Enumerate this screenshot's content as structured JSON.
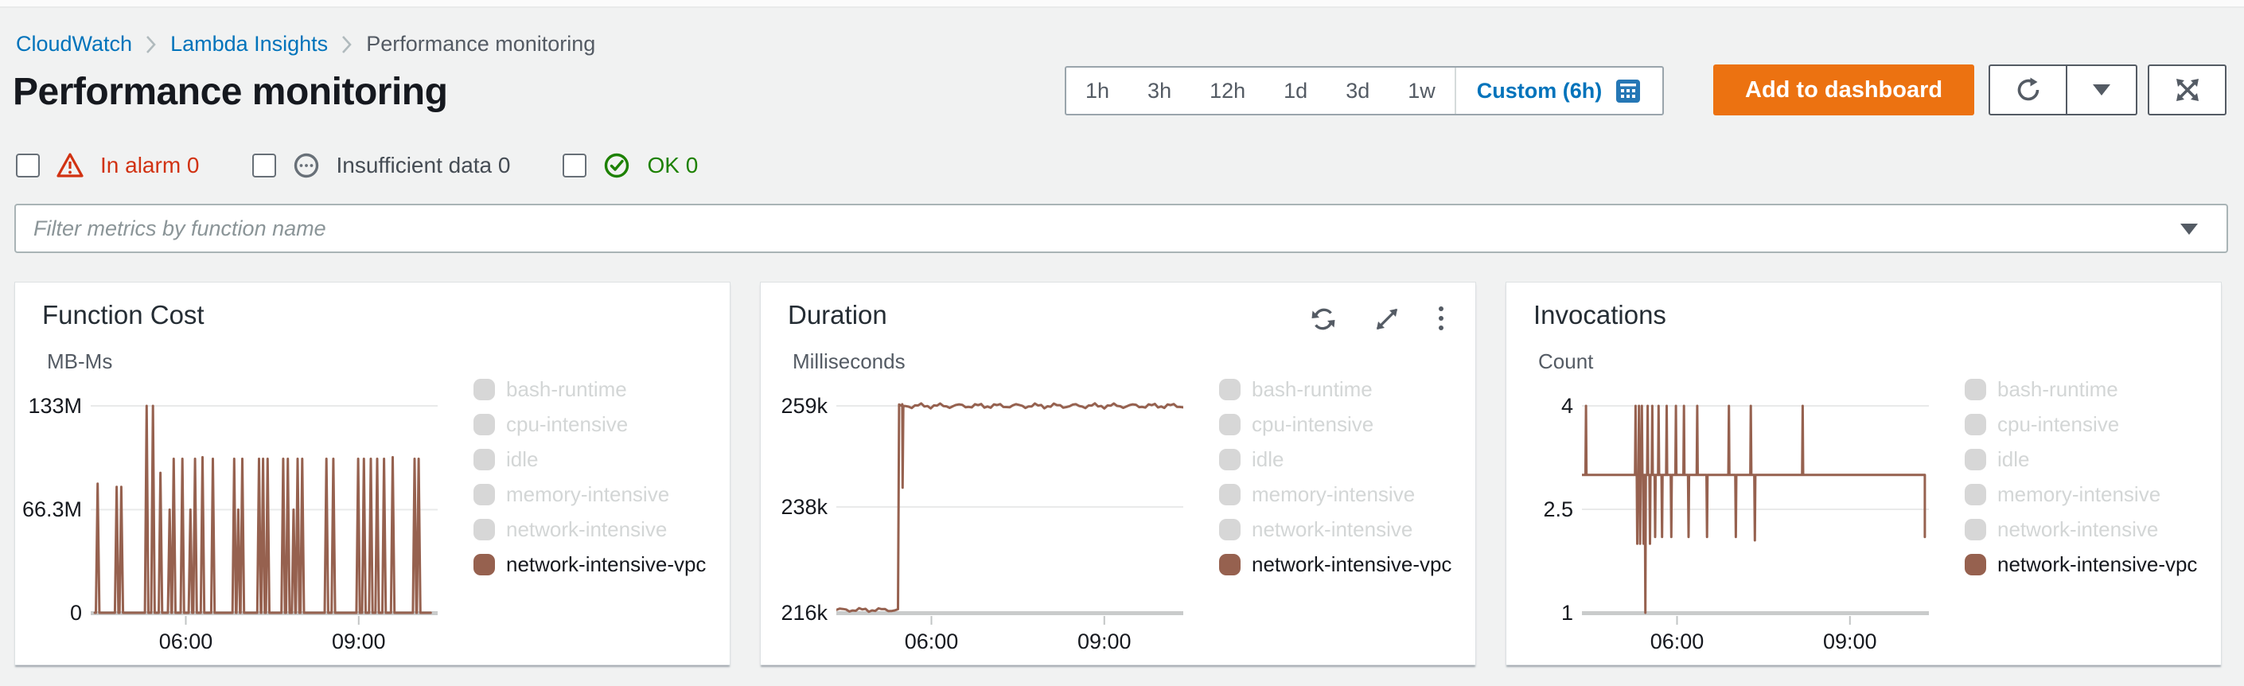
{
  "colors": {
    "link_blue": "#0073bb",
    "accent_orange": "#ec7211",
    "alarm_red": "#d13212",
    "ok_green": "#1d8102",
    "neutral_gray": "#687078",
    "series_brown": "#96614f",
    "inactive_chip": "#d7d7d7"
  },
  "breadcrumb": {
    "items": [
      {
        "label": "CloudWatch"
      },
      {
        "label": "Lambda Insights"
      },
      {
        "label": "Performance monitoring"
      }
    ]
  },
  "header": {
    "title": "Performance monitoring"
  },
  "time_range": {
    "options": [
      "1h",
      "3h",
      "12h",
      "1d",
      "3d",
      "1w"
    ],
    "custom_label": "Custom (6h)"
  },
  "actions": {
    "add_to_dashboard": "Add to dashboard"
  },
  "alarm_filters": [
    {
      "label": "In alarm 0",
      "state": "alarm",
      "color": "#d13212"
    },
    {
      "label": "Insufficient data 0",
      "state": "insufficient",
      "color": "#687078"
    },
    {
      "label": "OK 0",
      "state": "ok",
      "color": "#1d8102"
    }
  ],
  "filter": {
    "placeholder": "Filter metrics by function name"
  },
  "legend": {
    "items": [
      {
        "label": "bash-runtime",
        "active": false
      },
      {
        "label": "cpu-intensive",
        "active": false
      },
      {
        "label": "idle",
        "active": false
      },
      {
        "label": "memory-intensive",
        "active": false
      },
      {
        "label": "network-intensive",
        "active": false
      },
      {
        "label": "network-intensive-vpc",
        "active": true
      }
    ]
  },
  "chart_data": [
    {
      "type": "line",
      "title": "Function Cost",
      "unit": "MB-Ms",
      "toolbar": false,
      "value_scale": "millions",
      "x_range": [
        4.35,
        10.37
      ],
      "x_ticks": [
        {
          "t": 6,
          "label": "06:00"
        },
        {
          "t": 9,
          "label": "09:00"
        }
      ],
      "y_range": [
        0,
        133
      ],
      "y_ticks": [
        {
          "v": 133,
          "label": "133M"
        },
        {
          "v": 66.3,
          "label": "66.3M"
        },
        {
          "v": 0,
          "label": "0"
        }
      ],
      "series": [
        {
          "name": "network-intensive-vpc",
          "color": "#96614f",
          "spike_width": 0.03,
          "base": [
            {
              "from": 4.42,
              "to": 10.25,
              "value": 0,
              "noise": 0
            }
          ],
          "spikes": [
            [
              4.47,
              83
            ],
            [
              4.8,
              81
            ],
            [
              4.88,
              81
            ],
            [
              5.32,
              133
            ],
            [
              5.43,
              133
            ],
            [
              5.56,
              90
            ],
            [
              5.72,
              66.3
            ],
            [
              5.79,
              99
            ],
            [
              5.94,
              99
            ],
            [
              6.08,
              66.3
            ],
            [
              6.16,
              99
            ],
            [
              6.29,
              100
            ],
            [
              6.47,
              99
            ],
            [
              6.84,
              99
            ],
            [
              6.91,
              66.3
            ],
            [
              6.98,
              99
            ],
            [
              7.27,
              99
            ],
            [
              7.34,
              99
            ],
            [
              7.42,
              99
            ],
            [
              7.69,
              99
            ],
            [
              7.77,
              99
            ],
            [
              7.87,
              66.3
            ],
            [
              7.94,
              99
            ],
            [
              8.02,
              99
            ],
            [
              8.44,
              99
            ],
            [
              8.56,
              99
            ],
            [
              8.99,
              99
            ],
            [
              9.09,
              99
            ],
            [
              9.21,
              99
            ],
            [
              9.32,
              99
            ],
            [
              9.44,
              99
            ],
            [
              9.59,
              100
            ],
            [
              9.97,
              99
            ],
            [
              10.04,
              99
            ]
          ]
        }
      ]
    },
    {
      "type": "line",
      "title": "Duration",
      "unit": "Milliseconds",
      "toolbar": true,
      "value_scale": "thousands",
      "x_range": [
        4.35,
        10.37
      ],
      "x_ticks": [
        {
          "t": 6,
          "label": "06:00"
        },
        {
          "t": 9,
          "label": "09:00"
        }
      ],
      "y_range": [
        216,
        259
      ],
      "y_ticks": [
        {
          "v": 259,
          "label": "259k"
        },
        {
          "v": 238,
          "label": "238k"
        },
        {
          "v": 216,
          "label": "216k"
        }
      ],
      "series": [
        {
          "name": "network-intensive-vpc",
          "color": "#96614f",
          "spike_width": 0.012,
          "base": [
            {
              "from": 4.35,
              "to": 5.42,
              "value": 216.6,
              "noise": 0.45
            },
            {
              "from": 5.44,
              "to": 10.37,
              "value": 259,
              "noise": 0.55
            }
          ],
          "spikes": [
            [
              5.5,
              242
            ]
          ]
        }
      ]
    },
    {
      "type": "line",
      "title": "Invocations",
      "unit": "Count",
      "toolbar": false,
      "value_scale": "ones",
      "x_range": [
        4.35,
        10.37
      ],
      "x_ticks": [
        {
          "t": 6,
          "label": "06:00"
        },
        {
          "t": 9,
          "label": "09:00"
        }
      ],
      "y_range": [
        1,
        4
      ],
      "y_ticks": [
        {
          "v": 4,
          "label": "4"
        },
        {
          "v": 2.5,
          "label": "2.5"
        },
        {
          "v": 1,
          "label": "1"
        }
      ],
      "series": [
        {
          "name": "network-intensive-vpc",
          "color": "#96614f",
          "spike_width": 0.009,
          "base": [
            {
              "from": 4.35,
              "to": 10.3,
              "value": 3,
              "noise": 0
            }
          ],
          "spikes": [
            [
              4.42,
              4
            ],
            [
              5.28,
              4
            ],
            [
              5.31,
              2
            ],
            [
              5.34,
              4
            ],
            [
              5.36,
              2
            ],
            [
              5.39,
              4
            ],
            [
              5.42,
              2
            ],
            [
              5.45,
              1
            ],
            [
              5.49,
              4
            ],
            [
              5.53,
              2
            ],
            [
              5.57,
              4
            ],
            [
              5.62,
              2.1
            ],
            [
              5.68,
              4
            ],
            [
              5.74,
              2.1
            ],
            [
              5.82,
              4
            ],
            [
              5.9,
              2.1
            ],
            [
              5.98,
              4
            ],
            [
              6.12,
              4
            ],
            [
              6.2,
              2.1
            ],
            [
              6.35,
              4
            ],
            [
              6.52,
              2.1
            ],
            [
              6.9,
              4
            ],
            [
              7.02,
              2.1
            ],
            [
              7.28,
              4
            ],
            [
              7.35,
              2.05
            ],
            [
              8.18,
              4
            ]
          ],
          "end_drop": {
            "t": 10.3,
            "v": 2.1
          }
        }
      ]
    }
  ]
}
